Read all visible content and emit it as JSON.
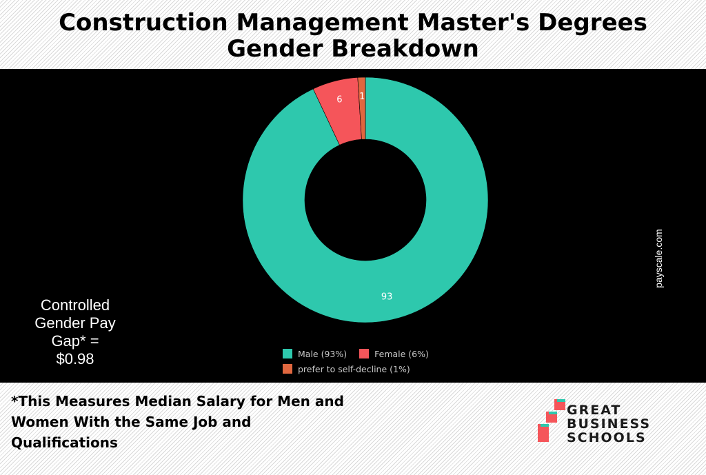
{
  "title": {
    "line1": "Construction Management Master's Degrees",
    "line2": "Gender Breakdown"
  },
  "chart_data": {
    "type": "pie",
    "style": "donut",
    "title": "Construction Management Master's Degrees Gender Breakdown",
    "categories": [
      "Male",
      "Female",
      "prefer to self-decline"
    ],
    "values": [
      93,
      6,
      1
    ],
    "data_labels": [
      "93",
      "6",
      "1"
    ],
    "legend": [
      "Male (93%)",
      "Female (6%)",
      "prefer to self-decline (1%)"
    ],
    "legend_placement": "bottom",
    "colors": [
      "#2ec8ad",
      "#f5555a",
      "#e0673f"
    ]
  },
  "pay_gap": {
    "line1": "Controlled",
    "line2": "Gender Pay",
    "line3": "Gap* =",
    "line4": "$0.98"
  },
  "source": "payscale.com",
  "footnote": {
    "line1": "*This Measures Median Salary for Men and",
    "line2": "Women With the Same Job and",
    "line3": "Qualifications"
  },
  "logo": {
    "line1": "GREAT",
    "line2": "BUSINESS",
    "line3": "SCHOOLS",
    "colors": [
      "#2ec8ad",
      "#f5555a"
    ]
  }
}
